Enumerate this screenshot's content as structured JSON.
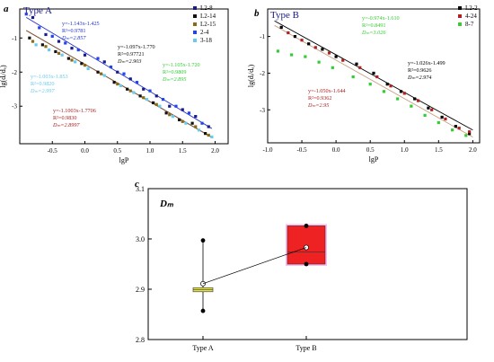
{
  "colors": {
    "L2-8": "#1a1a8c",
    "L2-14": "#111111",
    "L2-15": "#8a6a14",
    "2-4": "#2244ee",
    "3-18": "#66ccee",
    "L2-2": "#000000",
    "4-24": "#b02020",
    "8-7": "#33cc33",
    "fitA1": "#2233cc",
    "fitA2": "#4a4a4a",
    "fitA3": "#8a5a3a",
    "fitB": "#c8a080",
    "boxA_fill": "#e8e84a",
    "boxB_fill": "#ee2222",
    "boxB_glow": "#ff66cc"
  },
  "chart_data": [
    {
      "type": "scatter",
      "panel_letter": "a",
      "title": "Type A",
      "xlabel": "lgP",
      "ylabel": "lg(dᵢ/dₐ)",
      "xlim": [
        -1.0,
        2.2
      ],
      "ylim": [
        -4.1,
        -0.15
      ],
      "xticks": [
        "-0.5",
        "0.0",
        "0.5",
        "1.0",
        "1.5",
        "2.0"
      ],
      "yticks": [
        "-1",
        "-2",
        "-3"
      ],
      "legend_position": "top-right",
      "series": [
        {
          "name": "L2-8",
          "marker": "square",
          "color_key": "L2-8",
          "x": [
            -0.8,
            -0.6,
            -0.4,
            -0.2,
            0.0,
            0.3,
            0.5,
            0.7,
            0.9,
            1.1,
            1.3,
            1.5,
            1.7,
            1.9
          ],
          "y": [
            -0.4,
            -0.9,
            -1.1,
            -1.3,
            -1.5,
            -1.7,
            -2.0,
            -2.2,
            -2.5,
            -2.7,
            -3.0,
            -3.1,
            -3.3,
            -3.6
          ]
        },
        {
          "name": "L2-14",
          "marker": "square",
          "color_key": "L2-14",
          "x": [
            -0.85,
            -0.65,
            -0.45,
            -0.25,
            -0.05,
            0.2,
            0.45,
            0.65,
            0.85,
            1.05,
            1.25,
            1.45,
            1.65,
            1.85
          ],
          "y": [
            -1.0,
            -1.2,
            -1.4,
            -1.6,
            -1.75,
            -2.0,
            -2.3,
            -2.5,
            -2.7,
            -2.9,
            -3.2,
            -3.4,
            -3.5,
            -3.8
          ]
        },
        {
          "name": "L2-15",
          "marker": "square",
          "color_key": "L2-15",
          "x": [
            -0.8,
            -0.6,
            -0.4,
            -0.2,
            0.0,
            0.25,
            0.5,
            0.7,
            0.9,
            1.1,
            1.3,
            1.5,
            1.7,
            1.9
          ],
          "y": [
            -1.1,
            -1.25,
            -1.45,
            -1.65,
            -1.8,
            -2.05,
            -2.35,
            -2.55,
            -2.75,
            -2.95,
            -3.25,
            -3.45,
            -3.6,
            -3.85
          ]
        },
        {
          "name": "2-4",
          "marker": "square",
          "color_key": "2-4",
          "x": [
            -0.9,
            -0.7,
            -0.5,
            -0.3,
            -0.1,
            0.2,
            0.4,
            0.6,
            0.8,
            1.0,
            1.2,
            1.4,
            1.6,
            1.8
          ],
          "y": [
            -0.3,
            -0.7,
            -0.95,
            -1.15,
            -1.35,
            -1.6,
            -1.85,
            -2.05,
            -2.3,
            -2.55,
            -2.8,
            -3.0,
            -3.2,
            -3.5
          ]
        },
        {
          "name": "3-18",
          "marker": "square",
          "color_key": "3-18",
          "x": [
            -0.75,
            -0.55,
            -0.35,
            -0.15,
            0.05,
            0.3,
            0.55,
            0.75,
            0.95,
            1.15,
            1.35,
            1.55,
            1.75,
            1.95
          ],
          "y": [
            -1.2,
            -1.35,
            -1.5,
            -1.7,
            -1.9,
            -2.1,
            -2.4,
            -2.6,
            -2.8,
            -3.0,
            -3.3,
            -3.5,
            -3.7,
            -3.9
          ]
        }
      ],
      "fits": [
        {
          "slope": -1.143,
          "intercept": -1.425,
          "x": [
            -0.9,
            1.95
          ],
          "color_key": "fitA1"
        },
        {
          "slope": -1.097,
          "intercept": -1.77,
          "x": [
            -0.9,
            1.95
          ],
          "color_key": "fitA2"
        },
        {
          "slope": -1.1003,
          "intercept": -1.7706,
          "x": [
            -0.9,
            1.95
          ],
          "color_key": "fitA3"
        }
      ],
      "annotations": [
        {
          "color_key": "fitA1",
          "lines": [
            "y=-1.143x-1.425",
            "R²=0.9781",
            "Dₘ=2.857"
          ]
        },
        {
          "color_key": "L2-14",
          "lines": [
            "y=-1.097x-1.770",
            "R²=0.97721",
            "Dₘ=2.903"
          ]
        },
        {
          "color_key": "8-7",
          "lines": [
            "y=-1.105x-1.720",
            "R²=0.9809",
            "Dₘ=2.895"
          ]
        },
        {
          "color_key": "3-18",
          "lines": [
            "y=-1.003x-1.853",
            "R²=0.9820",
            "Dₘ=2.997"
          ]
        },
        {
          "color_key": "4-24",
          "lines": [
            "y=-1.1003x-1.7706",
            "R²=0.9830",
            "Dₘ=2.8997"
          ]
        }
      ]
    },
    {
      "type": "scatter",
      "panel_letter": "b",
      "title": "Type B",
      "xlabel": "lgP",
      "ylabel": "lg(dᵢ/dₐ)",
      "xlim": [
        -1.0,
        2.1
      ],
      "ylim": [
        -3.9,
        -0.25
      ],
      "xticks": [
        "-1.0",
        "-0.5",
        "0.0",
        "0.5",
        "1.0",
        "1.5",
        "2.0"
      ],
      "yticks": [
        "-1",
        "-2",
        "-3"
      ],
      "legend_position": "top-right",
      "series": [
        {
          "name": "L2-2",
          "marker": "square",
          "color_key": "L2-2",
          "x": [
            -0.8,
            -0.6,
            -0.4,
            -0.2,
            0.0,
            0.3,
            0.55,
            0.75,
            0.95,
            1.15,
            1.35,
            1.55,
            1.75,
            1.95
          ],
          "y": [
            -0.75,
            -1.0,
            -1.2,
            -1.35,
            -1.55,
            -1.75,
            -2.0,
            -2.3,
            -2.5,
            -2.7,
            -2.95,
            -3.2,
            -3.45,
            -3.65
          ]
        },
        {
          "name": "4-24",
          "marker": "square",
          "color_key": "4-24",
          "x": [
            -0.7,
            -0.5,
            -0.3,
            -0.1,
            0.1,
            0.35,
            0.6,
            0.8,
            1.0,
            1.2,
            1.4,
            1.6,
            1.8,
            1.95
          ],
          "y": [
            -0.9,
            -1.1,
            -1.3,
            -1.45,
            -1.65,
            -1.85,
            -2.1,
            -2.35,
            -2.55,
            -2.75,
            -3.0,
            -3.25,
            -3.5,
            -3.6
          ]
        },
        {
          "name": "8-7",
          "marker": "square",
          "color_key": "8-7",
          "x": [
            -0.85,
            -0.65,
            -0.45,
            -0.25,
            -0.05,
            0.25,
            0.5,
            0.7,
            0.9,
            1.1,
            1.3,
            1.5,
            1.7,
            1.9
          ],
          "y": [
            -1.4,
            -1.5,
            -1.55,
            -1.7,
            -1.85,
            -2.1,
            -2.3,
            -2.5,
            -2.7,
            -2.9,
            -3.15,
            -3.35,
            -3.55,
            -3.7
          ]
        }
      ],
      "fits": [
        {
          "slope": -1.026,
          "intercept": -1.499,
          "x": [
            -0.9,
            2.0
          ],
          "color_key": "L2-2"
        },
        {
          "slope": -1.05,
          "intercept": -1.644,
          "x": [
            -0.9,
            2.0
          ],
          "color_key": "fitB"
        }
      ],
      "annotations": [
        {
          "color_key": "8-7",
          "lines": [
            "y=-0.974x-1.610",
            "R²=0.8491",
            "Dₘ=3.026"
          ]
        },
        {
          "color_key": "L2-2",
          "lines": [
            "y=-1.026x-1.499",
            "R²=0.9626",
            "Dₘ=2.974"
          ]
        },
        {
          "color_key": "4-24",
          "lines": [
            "y=-1.050x-1.644",
            "R²=0.9362",
            "Dₘ=2.95"
          ]
        }
      ]
    },
    {
      "type": "box",
      "panel_letter": "c",
      "title": "Dₘ",
      "xlabel": "",
      "ylabel": "",
      "categories": [
        "Type A",
        "Type B"
      ],
      "ylim": [
        2.8,
        3.1
      ],
      "yticks": [
        "2.8",
        "2.9",
        "3.0",
        "3.1"
      ],
      "boxes": [
        {
          "category": "Type A",
          "q1": 2.895,
          "q3": 2.903,
          "median": 2.899,
          "mean": 2.911,
          "whisker_low": 2.857,
          "whisker_high": 2.997,
          "points": [
            2.857,
            2.895,
            2.8997,
            2.903,
            2.997
          ],
          "fill_key": "boxA_fill"
        },
        {
          "category": "Type B",
          "q1": 2.95,
          "q3": 3.026,
          "median": 2.974,
          "mean": 2.983,
          "whisker_low": 2.95,
          "whisker_high": 3.026,
          "points": [
            2.95,
            2.974,
            3.026
          ],
          "fill_key": "boxB_fill"
        }
      ]
    }
  ]
}
